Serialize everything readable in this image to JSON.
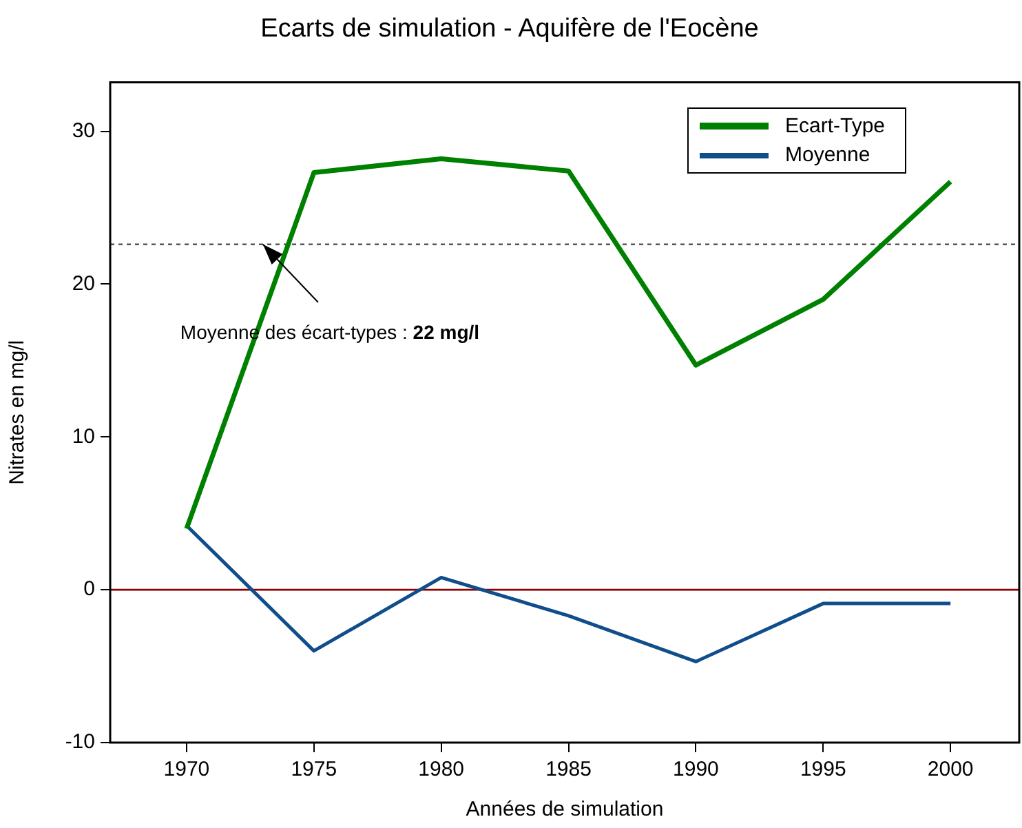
{
  "chart_data": {
    "type": "line",
    "title": "Ecarts de simulation - Aquifère de l'Eocène",
    "xlabel": "Années de simulation",
    "ylabel": "Nitrates en mg/l",
    "x": [
      1970,
      1975,
      1980,
      1985,
      1990,
      1995,
      2000
    ],
    "series": [
      {
        "name": "Ecart-Type",
        "color": "#008000",
        "values": [
          4.0,
          27.3,
          28.2,
          27.4,
          14.7,
          19.0,
          26.7
        ]
      },
      {
        "name": "Moyenne",
        "color": "#104e8b",
        "values": [
          4.2,
          -4.0,
          0.8,
          -1.7,
          -4.7,
          -0.9,
          -0.9
        ]
      }
    ],
    "xlim": [
      1967,
      2002.7
    ],
    "xticks": [
      1970,
      1975,
      1980,
      1985,
      1990,
      1995,
      2000
    ],
    "ylim": [
      -10,
      33.2
    ],
    "yticks": [
      -10,
      0,
      10,
      20,
      30
    ],
    "ref_lines": [
      {
        "axis": "y",
        "value": 22.6,
        "color": "#555555",
        "line_style": "dotted"
      },
      {
        "axis": "y",
        "value": 0,
        "color": "#8b0000",
        "line_style": "solid"
      }
    ],
    "annotations": [
      {
        "text": "Moyenne des écart-types : 22 mg/l",
        "x": 1973,
        "y": 22.6
      }
    ],
    "grid": false,
    "legend": "top right",
    "marker": "none",
    "line_style": "solid"
  }
}
